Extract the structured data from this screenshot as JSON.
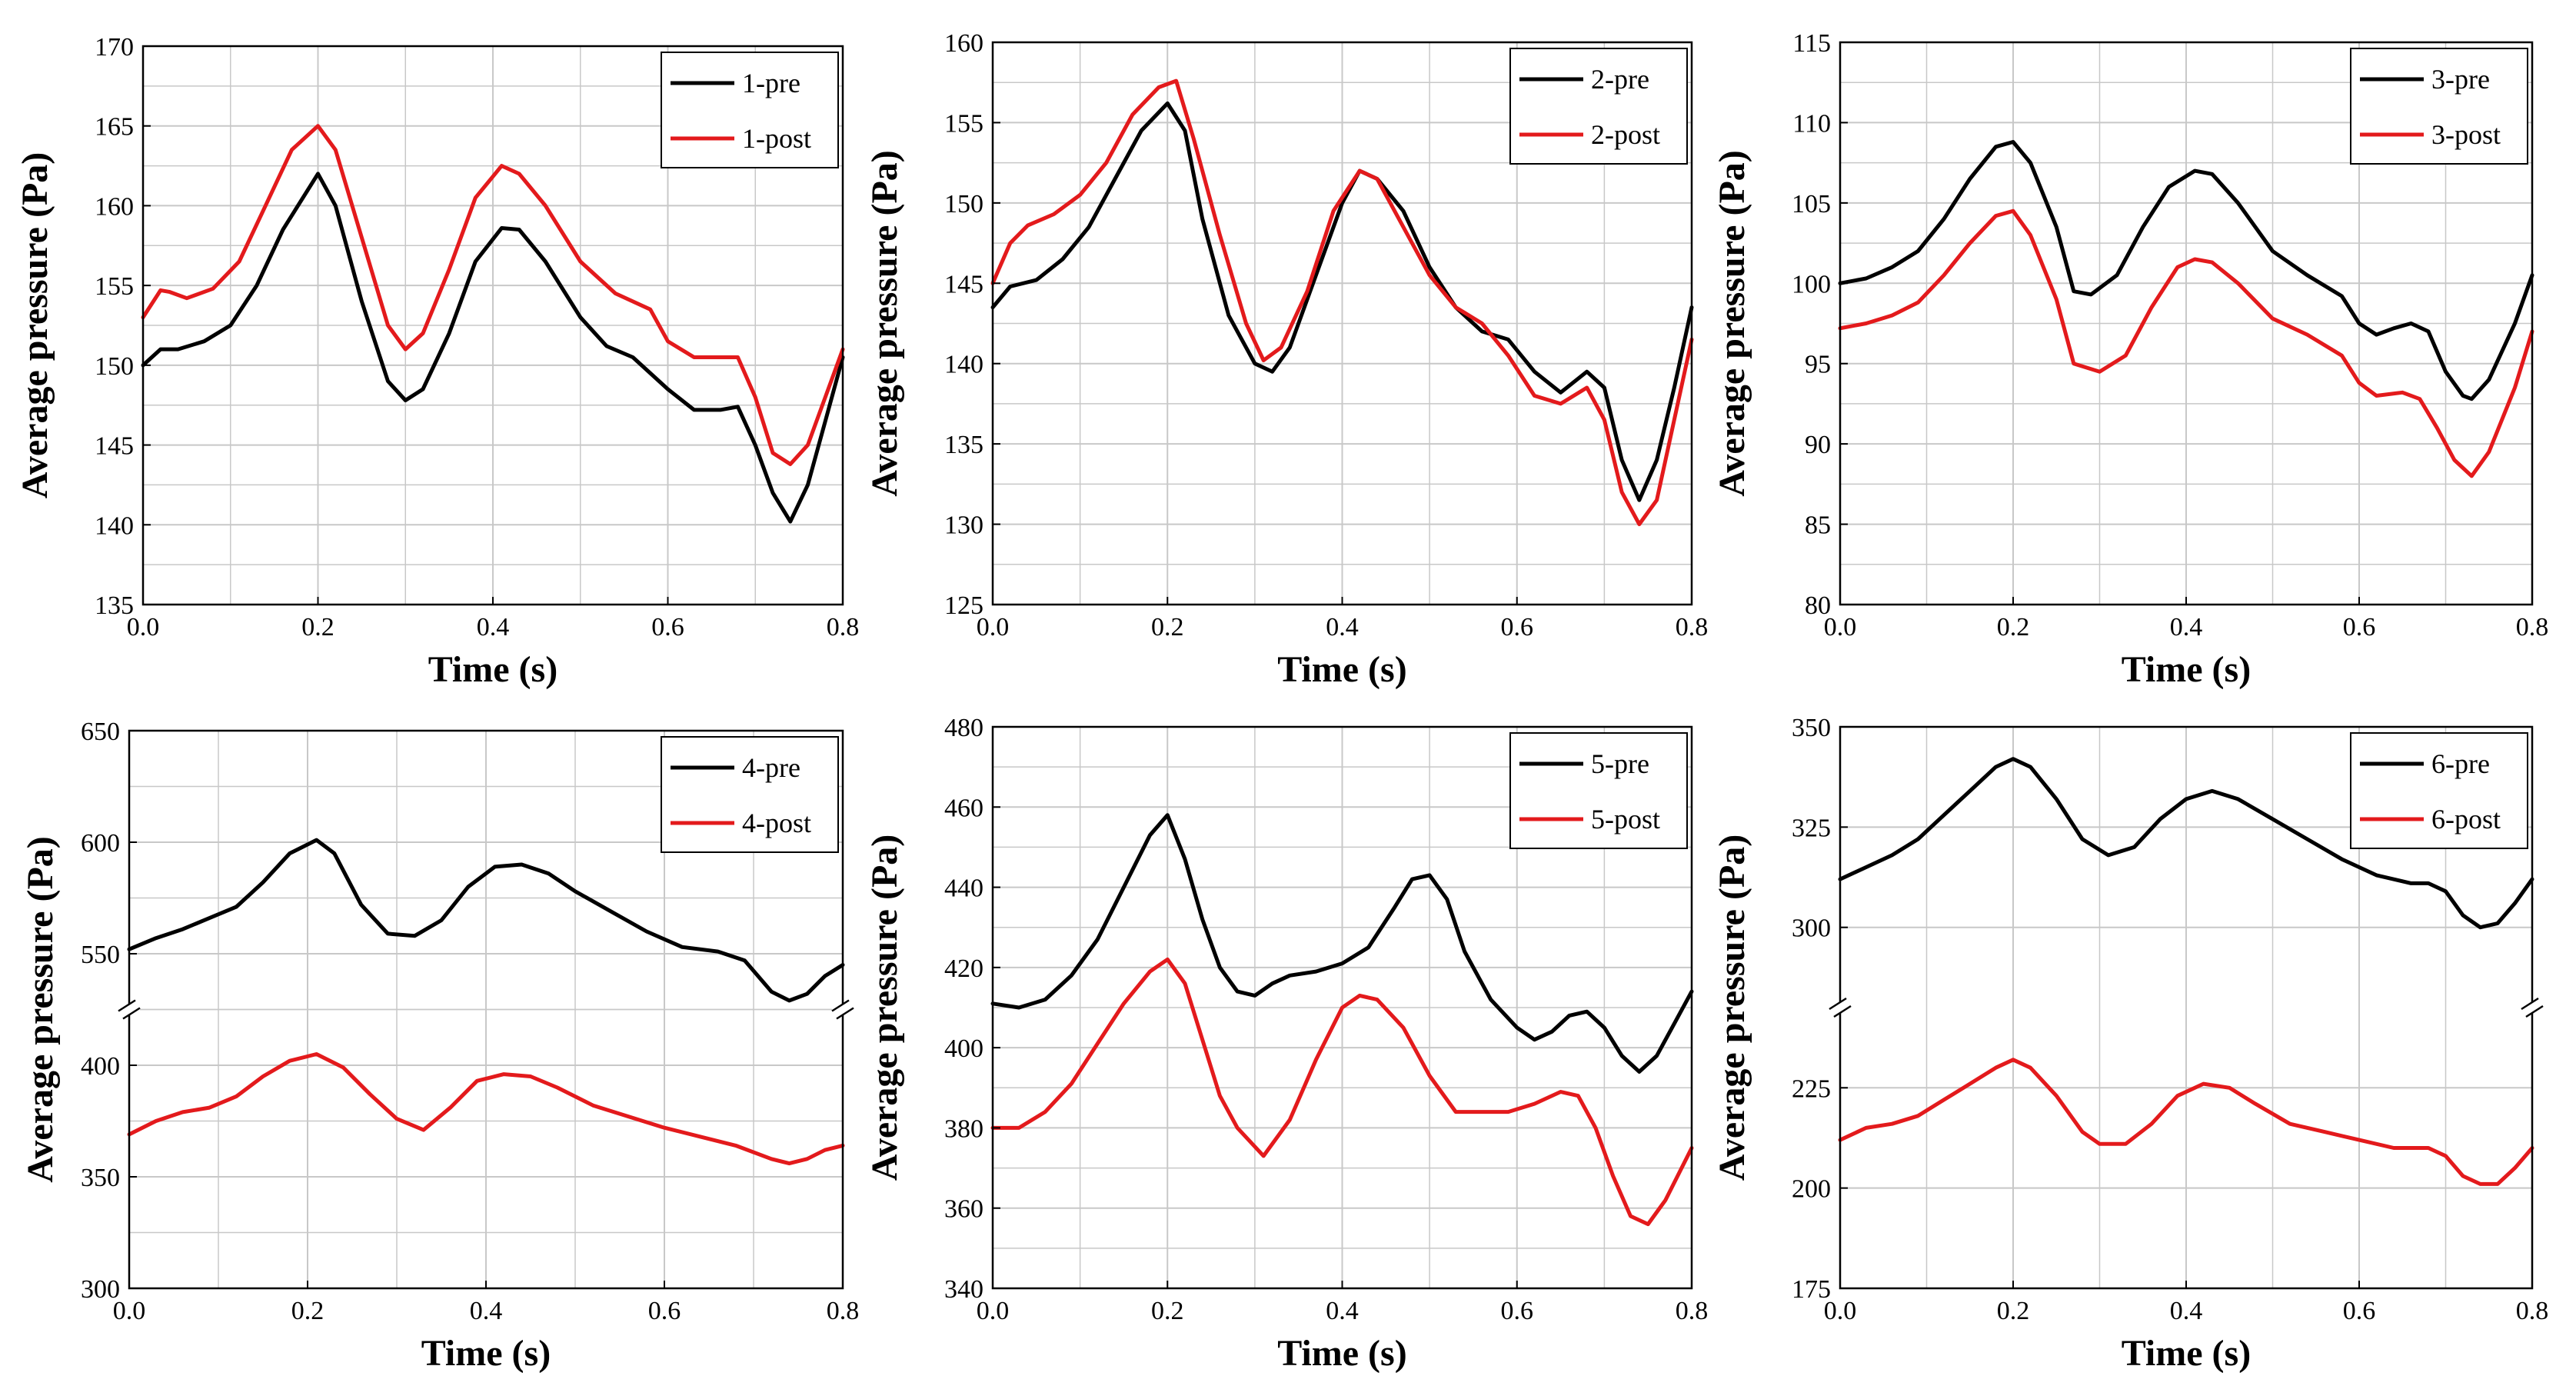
{
  "figure": {
    "description": "Six panels of average pressure vs time, pre and post"
  },
  "colors": {
    "pre": "#000000",
    "post": "#e31a1c",
    "grid": "#c8c8c8",
    "axis": "#000000"
  },
  "chart_data": [
    {
      "id": "1",
      "type": "line",
      "xlabel": "Time (s)",
      "ylabel": "Average pressure (Pa)",
      "xlim": [
        0,
        0.8
      ],
      "ylim": [
        135,
        170
      ],
      "xticks": [
        0.0,
        0.2,
        0.4,
        0.6,
        0.8
      ],
      "xtick_labels": [
        "0.0",
        "0.2",
        "0.4",
        "0.6",
        "0.8"
      ],
      "yticks": [
        135,
        140,
        145,
        150,
        155,
        160,
        165,
        170
      ],
      "ytick_labels": [
        "135",
        "140",
        "145",
        "150",
        "155",
        "160",
        "165",
        "170"
      ],
      "legend_position": "top-right",
      "series": [
        {
          "name": "1-pre",
          "color": "#000000",
          "x": [
            0,
            0.02,
            0.04,
            0.07,
            0.1,
            0.13,
            0.16,
            0.2,
            0.22,
            0.25,
            0.28,
            0.3,
            0.32,
            0.35,
            0.38,
            0.41,
            0.43,
            0.46,
            0.5,
            0.53,
            0.56,
            0.6,
            0.63,
            0.66,
            0.68,
            0.7,
            0.72,
            0.74,
            0.76,
            0.78,
            0.8
          ],
          "y": [
            150,
            151,
            151,
            151.5,
            152.5,
            155,
            158.5,
            162,
            160,
            154,
            149,
            147.8,
            148.5,
            152,
            156.5,
            158.6,
            158.5,
            156.5,
            153,
            151.2,
            150.5,
            148.5,
            147.2,
            147.2,
            147.4,
            145,
            142,
            140.2,
            142.5,
            146.5,
            150.5
          ]
        },
        {
          "name": "1-post",
          "color": "#e31a1c",
          "x": [
            0,
            0.02,
            0.03,
            0.05,
            0.08,
            0.11,
            0.14,
            0.17,
            0.2,
            0.22,
            0.25,
            0.28,
            0.3,
            0.32,
            0.35,
            0.38,
            0.41,
            0.43,
            0.46,
            0.5,
            0.54,
            0.58,
            0.6,
            0.63,
            0.66,
            0.68,
            0.7,
            0.72,
            0.74,
            0.76,
            0.78,
            0.8
          ],
          "y": [
            153,
            154.7,
            154.6,
            154.2,
            154.8,
            156.5,
            160,
            163.5,
            165,
            163.5,
            158,
            152.5,
            151,
            152,
            156,
            160.5,
            162.5,
            162,
            160,
            156.5,
            154.5,
            153.5,
            151.5,
            150.5,
            150.5,
            150.5,
            148,
            144.5,
            143.8,
            145,
            148,
            151
          ]
        }
      ]
    },
    {
      "id": "2",
      "type": "line",
      "xlabel": "Time (s)",
      "ylabel": "Average pressure (Pa)",
      "xlim": [
        0,
        0.8
      ],
      "ylim": [
        125,
        160
      ],
      "xticks": [
        0.0,
        0.2,
        0.4,
        0.6,
        0.8
      ],
      "xtick_labels": [
        "0.0",
        "0.2",
        "0.4",
        "0.6",
        "0.8"
      ],
      "yticks": [
        125,
        130,
        135,
        140,
        145,
        150,
        155,
        160
      ],
      "ytick_labels": [
        "125",
        "130",
        "135",
        "140",
        "145",
        "150",
        "155",
        "160"
      ],
      "legend_position": "top-right",
      "series": [
        {
          "name": "2-pre",
          "color": "#000000",
          "x": [
            0,
            0.02,
            0.05,
            0.08,
            0.11,
            0.14,
            0.17,
            0.2,
            0.22,
            0.24,
            0.27,
            0.3,
            0.32,
            0.34,
            0.37,
            0.4,
            0.42,
            0.44,
            0.47,
            0.5,
            0.53,
            0.56,
            0.59,
            0.62,
            0.65,
            0.68,
            0.7,
            0.72,
            0.74,
            0.76,
            0.78,
            0.8
          ],
          "y": [
            143.5,
            144.8,
            145.2,
            146.5,
            148.5,
            151.5,
            154.5,
            156.2,
            154.5,
            149,
            143,
            140,
            139.5,
            141,
            145.5,
            150,
            152,
            151.5,
            149.5,
            146,
            143.5,
            142,
            141.5,
            139.5,
            138.2,
            139.5,
            138.5,
            134,
            131.5,
            134,
            138.5,
            143.5
          ]
        },
        {
          "name": "2-post",
          "color": "#e31a1c",
          "x": [
            0,
            0.02,
            0.04,
            0.07,
            0.1,
            0.13,
            0.16,
            0.19,
            0.21,
            0.23,
            0.26,
            0.29,
            0.31,
            0.33,
            0.36,
            0.39,
            0.42,
            0.44,
            0.47,
            0.5,
            0.53,
            0.56,
            0.59,
            0.62,
            0.65,
            0.68,
            0.7,
            0.72,
            0.74,
            0.76,
            0.78,
            0.8
          ],
          "y": [
            145,
            147.5,
            148.6,
            149.3,
            150.5,
            152.5,
            155.5,
            157.2,
            157.6,
            154,
            148,
            142.5,
            140.2,
            141,
            144.5,
            149.5,
            152,
            151.5,
            148.5,
            145.5,
            143.5,
            142.5,
            140.5,
            138,
            137.5,
            138.5,
            136.5,
            132,
            130,
            131.5,
            136.5,
            141.5
          ]
        }
      ]
    },
    {
      "id": "3",
      "type": "line",
      "xlabel": "Time (s)",
      "ylabel": "Average pressure (Pa)",
      "xlim": [
        0,
        0.8
      ],
      "ylim": [
        80,
        115
      ],
      "xticks": [
        0.0,
        0.2,
        0.4,
        0.6,
        0.8
      ],
      "xtick_labels": [
        "0.0",
        "0.2",
        "0.4",
        "0.6",
        "0.8"
      ],
      "yticks": [
        80,
        85,
        90,
        95,
        100,
        105,
        110,
        115
      ],
      "ytick_labels": [
        "80",
        "85",
        "90",
        "95",
        "100",
        "105",
        "110",
        "115"
      ],
      "legend_position": "top-right",
      "series": [
        {
          "name": "3-pre",
          "color": "#000000",
          "x": [
            0,
            0.03,
            0.06,
            0.09,
            0.12,
            0.15,
            0.18,
            0.2,
            0.22,
            0.25,
            0.27,
            0.29,
            0.32,
            0.35,
            0.38,
            0.41,
            0.43,
            0.46,
            0.5,
            0.54,
            0.58,
            0.6,
            0.62,
            0.64,
            0.66,
            0.68,
            0.7,
            0.72,
            0.73,
            0.75,
            0.78,
            0.8
          ],
          "y": [
            100,
            100.3,
            101,
            102,
            104,
            106.5,
            108.5,
            108.8,
            107.5,
            103.5,
            99.5,
            99.3,
            100.5,
            103.5,
            106,
            107,
            106.8,
            105,
            102,
            100.5,
            99.2,
            97.5,
            96.8,
            97.2,
            97.5,
            97,
            94.5,
            93,
            92.8,
            94,
            97.5,
            100.5
          ]
        },
        {
          "name": "3-post",
          "color": "#e31a1c",
          "x": [
            0,
            0.03,
            0.06,
            0.09,
            0.12,
            0.15,
            0.18,
            0.2,
            0.22,
            0.25,
            0.27,
            0.3,
            0.33,
            0.36,
            0.39,
            0.41,
            0.43,
            0.46,
            0.5,
            0.54,
            0.58,
            0.6,
            0.62,
            0.65,
            0.67,
            0.69,
            0.71,
            0.73,
            0.75,
            0.78,
            0.8
          ],
          "y": [
            97.2,
            97.5,
            98,
            98.8,
            100.5,
            102.5,
            104.2,
            104.5,
            103,
            99,
            95,
            94.5,
            95.5,
            98.5,
            101,
            101.5,
            101.3,
            100,
            97.8,
            96.8,
            95.5,
            93.8,
            93,
            93.2,
            92.8,
            91,
            89,
            88,
            89.5,
            93.5,
            97
          ]
        }
      ]
    },
    {
      "id": "4",
      "type": "line",
      "xlabel": "Time (s)",
      "ylabel": "Average pressure (Pa)",
      "xlim": [
        0,
        0.8
      ],
      "y_axis_break": true,
      "ylim_lower": [
        300,
        425
      ],
      "ylim_upper": [
        525,
        650
      ],
      "yticks_lower": [
        300,
        350,
        400
      ],
      "ytick_labels_lower": [
        "300",
        "350",
        "400"
      ],
      "yticks_upper": [
        550,
        600,
        650
      ],
      "ytick_labels_upper": [
        "550",
        "600",
        "650"
      ],
      "xticks": [
        0.0,
        0.2,
        0.4,
        0.6,
        0.8
      ],
      "xtick_labels": [
        "0.0",
        "0.2",
        "0.4",
        "0.6",
        "0.8"
      ],
      "legend_position": "top-right",
      "series": [
        {
          "name": "4-pre",
          "color": "#000000",
          "x": [
            0,
            0.03,
            0.06,
            0.09,
            0.12,
            0.15,
            0.18,
            0.21,
            0.23,
            0.26,
            0.29,
            0.32,
            0.35,
            0.38,
            0.41,
            0.44,
            0.47,
            0.5,
            0.54,
            0.58,
            0.62,
            0.66,
            0.69,
            0.72,
            0.74,
            0.76,
            0.78,
            0.8
          ],
          "y": [
            552,
            557,
            561,
            566,
            571,
            582,
            595,
            601,
            595,
            572,
            559,
            558,
            565,
            580,
            589,
            590,
            586,
            578,
            569,
            560,
            553,
            551,
            547,
            533,
            529,
            532,
            540,
            545
          ]
        },
        {
          "name": "4-post",
          "color": "#e31a1c",
          "x": [
            0,
            0.03,
            0.06,
            0.09,
            0.12,
            0.15,
            0.18,
            0.21,
            0.24,
            0.27,
            0.3,
            0.33,
            0.36,
            0.39,
            0.42,
            0.45,
            0.48,
            0.52,
            0.56,
            0.6,
            0.64,
            0.68,
            0.72,
            0.74,
            0.76,
            0.78,
            0.8
          ],
          "y": [
            369,
            375,
            379,
            381,
            386,
            395,
            402,
            405,
            399,
            387,
            376,
            371,
            381,
            393,
            396,
            395,
            390,
            382,
            377,
            372,
            368,
            364,
            358,
            356,
            358,
            362,
            364
          ]
        }
      ]
    },
    {
      "id": "5",
      "type": "line",
      "xlabel": "Time (s)",
      "ylabel": "Average pressure (Pa)",
      "xlim": [
        0,
        0.8
      ],
      "ylim": [
        340,
        480
      ],
      "xticks": [
        0.0,
        0.2,
        0.4,
        0.6,
        0.8
      ],
      "xtick_labels": [
        "0.0",
        "0.2",
        "0.4",
        "0.6",
        "0.8"
      ],
      "yticks": [
        340,
        360,
        380,
        400,
        420,
        440,
        460,
        480
      ],
      "ytick_labels": [
        "340",
        "360",
        "380",
        "400",
        "420",
        "440",
        "460",
        "480"
      ],
      "legend_position": "top-right",
      "series": [
        {
          "name": "5-pre",
          "color": "#000000",
          "x": [
            0,
            0.03,
            0.06,
            0.09,
            0.12,
            0.15,
            0.18,
            0.2,
            0.22,
            0.24,
            0.26,
            0.28,
            0.3,
            0.32,
            0.34,
            0.37,
            0.4,
            0.43,
            0.46,
            0.48,
            0.5,
            0.52,
            0.54,
            0.57,
            0.6,
            0.62,
            0.64,
            0.66,
            0.68,
            0.7,
            0.72,
            0.74,
            0.76,
            0.78,
            0.8
          ],
          "y": [
            411,
            410,
            412,
            418,
            427,
            440,
            453,
            458,
            447,
            432,
            420,
            414,
            413,
            416,
            418,
            419,
            421,
            425,
            435,
            442,
            443,
            437,
            424,
            412,
            405,
            402,
            404,
            408,
            409,
            405,
            398,
            394,
            398,
            406,
            414
          ]
        },
        {
          "name": "5-post",
          "color": "#e31a1c",
          "x": [
            0,
            0.03,
            0.06,
            0.09,
            0.12,
            0.15,
            0.18,
            0.2,
            0.22,
            0.24,
            0.26,
            0.28,
            0.31,
            0.34,
            0.37,
            0.4,
            0.42,
            0.44,
            0.47,
            0.5,
            0.53,
            0.56,
            0.59,
            0.62,
            0.65,
            0.67,
            0.69,
            0.71,
            0.73,
            0.75,
            0.77,
            0.8
          ],
          "y": [
            380,
            380,
            384,
            391,
            401,
            411,
            419,
            422,
            416,
            402,
            388,
            380,
            373,
            382,
            397,
            410,
            413,
            412,
            405,
            393,
            384,
            384,
            384,
            386,
            389,
            388,
            380,
            368,
            358,
            356,
            362,
            375
          ]
        }
      ]
    },
    {
      "id": "6",
      "type": "line",
      "xlabel": "Time (s)",
      "ylabel": "Average pressure (Pa)",
      "xlim": [
        0,
        0.8
      ],
      "y_axis_break": true,
      "ylim_lower": [
        175,
        245
      ],
      "ylim_upper": [
        280,
        350
      ],
      "yticks_lower": [
        175,
        200,
        225
      ],
      "ytick_labels_lower": [
        "175",
        "200",
        "225"
      ],
      "yticks_upper": [
        300,
        325,
        350
      ],
      "ytick_labels_upper": [
        "300",
        "325",
        "350"
      ],
      "xticks": [
        0.0,
        0.2,
        0.4,
        0.6,
        0.8
      ],
      "xtick_labels": [
        "0.0",
        "0.2",
        "0.4",
        "0.6",
        "0.8"
      ],
      "legend_position": "top-right",
      "series": [
        {
          "name": "6-pre",
          "color": "#000000",
          "x": [
            0,
            0.03,
            0.06,
            0.09,
            0.12,
            0.15,
            0.18,
            0.2,
            0.22,
            0.25,
            0.28,
            0.31,
            0.34,
            0.37,
            0.4,
            0.43,
            0.46,
            0.5,
            0.54,
            0.58,
            0.62,
            0.66,
            0.68,
            0.7,
            0.72,
            0.74,
            0.76,
            0.78,
            0.8
          ],
          "y": [
            312,
            315,
            318,
            322,
            328,
            334,
            340,
            342,
            340,
            332,
            322,
            318,
            320,
            327,
            332,
            334,
            332,
            327,
            322,
            317,
            313,
            311,
            311,
            309,
            303,
            300,
            301,
            306,
            312
          ]
        },
        {
          "name": "6-post",
          "color": "#e31a1c",
          "x": [
            0,
            0.03,
            0.06,
            0.09,
            0.12,
            0.15,
            0.18,
            0.2,
            0.22,
            0.25,
            0.28,
            0.3,
            0.33,
            0.36,
            0.39,
            0.42,
            0.45,
            0.48,
            0.52,
            0.56,
            0.6,
            0.64,
            0.68,
            0.7,
            0.72,
            0.74,
            0.76,
            0.78,
            0.8
          ],
          "y": [
            212,
            215,
            216,
            218,
            222,
            226,
            230,
            232,
            230,
            223,
            214,
            211,
            211,
            216,
            223,
            226,
            225,
            221,
            216,
            214,
            212,
            210,
            210,
            208,
            203,
            201,
            201,
            205,
            210
          ]
        }
      ]
    }
  ]
}
